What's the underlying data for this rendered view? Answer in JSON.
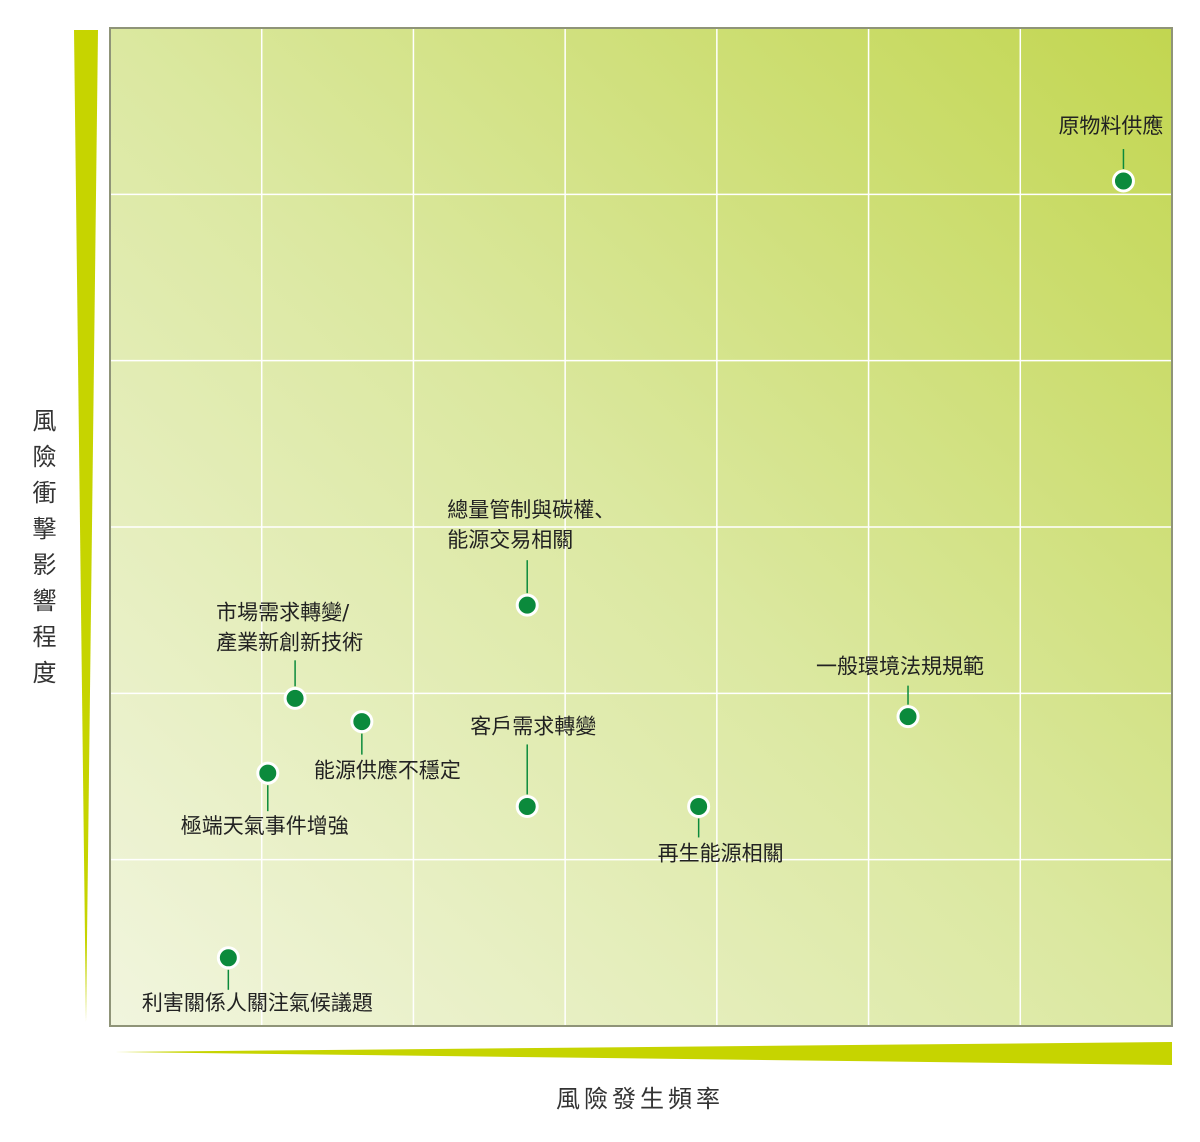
{
  "chart_data": {
    "type": "scatter",
    "xlabel": "風險發生頻率",
    "ylabel": "風險衝擊影響程度",
    "xlim": [
      0,
      7
    ],
    "ylim": [
      0,
      6
    ],
    "xticks": [
      0,
      1,
      2,
      3,
      4,
      5,
      6,
      7
    ],
    "yticks": [
      0,
      1,
      2,
      3,
      4,
      5,
      6
    ],
    "grid": true,
    "color": "#0b8a3c",
    "points": [
      {
        "label": [
          "原物料供應"
        ],
        "x": 6.68,
        "y": 5.08
      },
      {
        "label": [
          "總量管制與碳權、",
          "能源交易相關"
        ],
        "x": 2.75,
        "y": 2.53
      },
      {
        "label": [
          "市場需求轉變/",
          "產業新創新技術"
        ],
        "x": 1.22,
        "y": 1.97
      },
      {
        "label": [
          "一般環境法規規範"
        ],
        "x": 5.26,
        "y": 1.86
      },
      {
        "label": [
          "能源供應不穩定"
        ],
        "x": 1.66,
        "y": 1.83
      },
      {
        "label": [
          "極端天氣事件增強"
        ],
        "x": 1.04,
        "y": 1.52
      },
      {
        "label": [
          "客戶需求轉變"
        ],
        "x": 2.75,
        "y": 1.32
      },
      {
        "label": [
          "再生能源相關"
        ],
        "x": 3.88,
        "y": 1.32
      },
      {
        "label": [
          "利害關係人關注氣候議題"
        ],
        "x": 0.78,
        "y": 0.41
      }
    ]
  }
}
